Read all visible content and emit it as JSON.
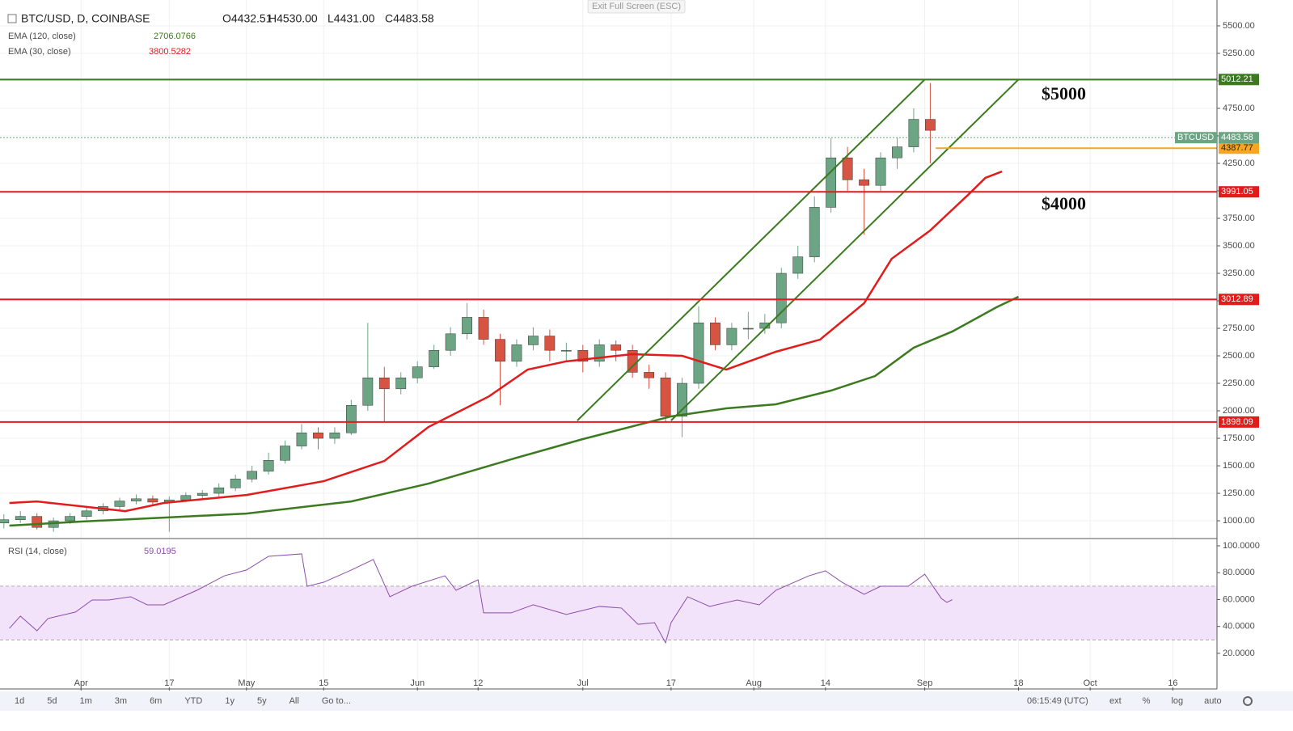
{
  "chart_data": [
    {
      "type": "candlestick",
      "title": "BTC/USD, D, COINBASE",
      "ohlc_text": [
        "O4432.51",
        "H4530.00",
        "L4431.00",
        "C4483.58"
      ],
      "up_color": "#6ba583",
      "down_color": "#d75442",
      "x": [
        0,
        3,
        6,
        9,
        12,
        15,
        18,
        21,
        24,
        27,
        30,
        33,
        36,
        39,
        42,
        45,
        48,
        51,
        54,
        57,
        60,
        63,
        66,
        69,
        72,
        75,
        78,
        81,
        84,
        87,
        90,
        93,
        96,
        99,
        102,
        105,
        108,
        111,
        114,
        117,
        120,
        123,
        126,
        129,
        132,
        135,
        138,
        141,
        144,
        147,
        150,
        153,
        156,
        159,
        162,
        165,
        168
      ],
      "open": [
        980,
        1010,
        1040,
        940,
        1000,
        1040,
        1090,
        1130,
        1180,
        1200,
        1170,
        1190,
        1230,
        1250,
        1300,
        1380,
        1450,
        1550,
        1680,
        1800,
        1750,
        1800,
        2050,
        2300,
        2200,
        2300,
        2400,
        2550,
        2700,
        2850,
        2650,
        2450,
        2600,
        2680,
        2550,
        2550,
        2450,
        2600,
        2550,
        2350,
        2300,
        1950,
        2250,
        2800,
        2600,
        2750,
        2750,
        2800,
        3250,
        3400,
        3850,
        4300,
        4100,
        4050,
        4300,
        4400,
        4650
      ],
      "high": [
        1060,
        1090,
        1070,
        1030,
        1070,
        1120,
        1160,
        1210,
        1240,
        1230,
        1220,
        1260,
        1280,
        1340,
        1420,
        1500,
        1620,
        1730,
        1880,
        1850,
        1850,
        2100,
        2800,
        2400,
        2350,
        2450,
        2600,
        2760,
        2980,
        2920,
        2700,
        2650,
        2760,
        2740,
        2620,
        2600,
        2650,
        2640,
        2600,
        2420,
        2350,
        2300,
        2950,
        2850,
        2800,
        2900,
        2880,
        3300,
        3500,
        3950,
        4480,
        4400,
        4200,
        4350,
        4480,
        4750,
        4980
      ],
      "low": [
        930,
        980,
        920,
        900,
        970,
        1010,
        1060,
        1100,
        1150,
        1140,
        900,
        1170,
        1200,
        1220,
        1270,
        1350,
        1420,
        1520,
        1650,
        1650,
        1700,
        1780,
        2000,
        1900,
        2150,
        2250,
        2380,
        2500,
        2650,
        2600,
        2050,
        2400,
        2550,
        2450,
        2450,
        2350,
        2400,
        2450,
        2300,
        2200,
        1900,
        1760,
        2200,
        2550,
        2550,
        2650,
        2700,
        2750,
        3200,
        3350,
        3800,
        4000,
        3600,
        4000,
        4200,
        4350,
        4250
      ],
      "close": [
        1010,
        1040,
        940,
        1000,
        1040,
        1090,
        1130,
        1180,
        1200,
        1170,
        1190,
        1230,
        1250,
        1300,
        1380,
        1450,
        1550,
        1680,
        1800,
        1750,
        1800,
        2050,
        2300,
        2200,
        2300,
        2400,
        2550,
        2700,
        2850,
        2650,
        2450,
        2600,
        2680,
        2550,
        2550,
        2450,
        2600,
        2550,
        2350,
        2300,
        1950,
        2250,
        2800,
        2600,
        2750,
        2750,
        2800,
        3250,
        3400,
        3850,
        4300,
        4100,
        4050,
        4300,
        4400,
        4650,
        4550
      ],
      "indicators": [
        {
          "name": "EMA (120, close)",
          "last": 2706.0766,
          "color": "#3b7a1e",
          "x": [
            1,
            14,
            29,
            44,
            63,
            77,
            92,
            105,
            121,
            131,
            140,
            150,
            158,
            165,
            172,
            180,
            184
          ],
          "values": [
            956,
            993,
            1029,
            1066,
            1176,
            1338,
            1559,
            1743,
            1949,
            2022,
            2059,
            2184,
            2316,
            2574,
            2721,
            2941,
            3037
          ]
        },
        {
          "name": "EMA (30, close)",
          "last": 3800.5282,
          "color": "#e21b1b",
          "x": [
            1,
            6,
            22,
            29,
            44,
            58,
            69,
            77,
            88,
            95,
            102,
            114,
            123,
            131,
            140,
            148,
            156,
            161,
            168,
            175,
            178,
            181
          ],
          "values": [
            1162,
            1176,
            1088,
            1162,
            1235,
            1360,
            1544,
            1853,
            2132,
            2375,
            2450,
            2515,
            2500,
            2375,
            2537,
            2647,
            2978,
            3382,
            3640,
            3970,
            4118,
            4176
          ]
        }
      ],
      "levels": [
        {
          "value": 5012.21,
          "color": "#3b7a1e"
        },
        {
          "value": 3991.05,
          "color": "#e21b1b"
        },
        {
          "value": 3012.89,
          "color": "#e21b1b"
        },
        {
          "value": 1898.09,
          "color": "#e21b1b"
        }
      ],
      "support": {
        "value": 4387.77,
        "color": "#f5a623",
        "x_start": 169
      },
      "last_price": {
        "name": "BTCUSD",
        "value": 4483.58,
        "color": "#6ba583"
      },
      "channel": {
        "color": "#3b7a1e",
        "lines": [
          {
            "x": [
              104,
              167
            ],
            "y": [
              1912,
              5012
            ]
          },
          {
            "x": [
              121,
              184
            ],
            "y": [
              1912,
              5012
            ]
          }
        ]
      },
      "annotations": [
        "$5000",
        "$4000"
      ],
      "xlim": [
        -0.7,
        220
      ],
      "ylim": [
        846,
        5735
      ],
      "xticks": [
        {
          "value": 14,
          "label": "Apr"
        },
        {
          "value": 30,
          "label": "17"
        },
        {
          "value": 44,
          "label": "May"
        },
        {
          "value": 58,
          "label": "15"
        },
        {
          "value": 75,
          "label": "Jun"
        },
        {
          "value": 86,
          "label": "12"
        },
        {
          "value": 105,
          "label": "Jul"
        },
        {
          "value": 121,
          "label": "17"
        },
        {
          "value": 136,
          "label": "Aug"
        },
        {
          "value": 149,
          "label": "14"
        },
        {
          "value": 167,
          "label": "Sep"
        },
        {
          "value": 184,
          "label": "18"
        },
        {
          "value": 197,
          "label": "Oct"
        },
        {
          "value": 212,
          "label": "16"
        }
      ],
      "yticks": [
        {
          "value": 1000,
          "label": "1000.00"
        },
        {
          "value": 1250,
          "label": "1250.00"
        },
        {
          "value": 1500,
          "label": "1500.00"
        },
        {
          "value": 1750,
          "label": "1750.00"
        },
        {
          "value": 2000,
          "label": "2000.00"
        },
        {
          "value": 2250,
          "label": "2250.00"
        },
        {
          "value": 2500,
          "label": "2500.00"
        },
        {
          "value": 2750,
          "label": "2750.00"
        },
        {
          "value": 3000,
          "label": "3000.00"
        },
        {
          "value": 3250,
          "label": "3250.00"
        },
        {
          "value": 3500,
          "label": "3500.00"
        },
        {
          "value": 3750,
          "label": "3750.00"
        },
        {
          "value": 4000,
          "label": "4000.00"
        },
        {
          "value": 4250,
          "label": "4250.00"
        },
        {
          "value": 4500,
          "label": "4500.00"
        },
        {
          "value": 4750,
          "label": "4750.00"
        },
        {
          "value": 5000,
          "label": "5000.00"
        },
        {
          "value": 5250,
          "label": "5250.00"
        },
        {
          "value": 5500,
          "label": "5500.00"
        }
      ],
      "grid": true
    },
    {
      "type": "line",
      "title": "RSI (14, close)",
      "last": 59.0195,
      "color": "#8b4dab",
      "band": [
        30,
        70
      ],
      "band_color": "#f3e3fa",
      "x": [
        1,
        3,
        6,
        8,
        13,
        16,
        19,
        23,
        26,
        29,
        35,
        40,
        44,
        48,
        54,
        55,
        58,
        63,
        67,
        70,
        74,
        80,
        82,
        86,
        87,
        92,
        96,
        102,
        108,
        112,
        115,
        118,
        120,
        121,
        124,
        128,
        133,
        137,
        140,
        146,
        149,
        152,
        156,
        159,
        164,
        167,
        170,
        171,
        172
      ],
      "values": [
        38.6,
        47.7,
        36.8,
        45.9,
        50.7,
        59.7,
        59.7,
        62.1,
        56.1,
        56.1,
        66.9,
        77.7,
        82,
        92.2,
        94,
        69.9,
        72.9,
        82,
        89.8,
        62.1,
        69.9,
        77.7,
        66.9,
        74.7,
        50.1,
        50.1,
        56.1,
        48.9,
        54.9,
        53.7,
        41.6,
        42.8,
        27.8,
        42.8,
        62.1,
        54.9,
        59.7,
        56.1,
        66.9,
        77.7,
        81.4,
        72.9,
        63.9,
        69.9,
        69.9,
        78.9,
        60.9,
        57.9,
        59.9
      ],
      "ylim": [
        -5.3,
        104.2
      ],
      "yticks": [
        {
          "value": 20,
          "label": "20.0000"
        },
        {
          "value": 40,
          "label": "40.0000"
        },
        {
          "value": 60,
          "label": "60.0000"
        },
        {
          "value": 80,
          "label": "80.0000"
        },
        {
          "value": 100,
          "label": "100.0000"
        }
      ]
    }
  ],
  "ui": {
    "exit_button": "Exit Full Screen (ESC)",
    "toolbar": [
      "1d",
      "5d",
      "1m",
      "3m",
      "6m",
      "YTD",
      "1y",
      "5y",
      "All",
      "Go to..."
    ],
    "clock": "06:15:49 (UTC)",
    "toggles": [
      "ext",
      "%",
      "log",
      "auto"
    ]
  }
}
